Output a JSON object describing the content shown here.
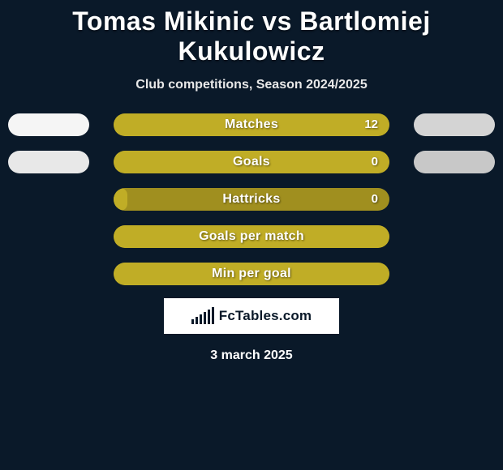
{
  "title": "Tomas Mikinic vs Bartlomiej Kukulowicz",
  "subtitle": "Club competitions, Season 2024/2025",
  "date_text": "3 march 2025",
  "logo_text": "FcTables.com",
  "colors": {
    "background": "#0a1929",
    "pill_left": "#f5f5f5",
    "pill_right": "#d4d4d4",
    "track": "#a08f1f",
    "fill": "#c0ad26"
  },
  "logo_bar_heights": [
    6,
    9,
    12,
    15,
    18,
    21
  ],
  "bars": [
    {
      "label": "Matches",
      "value_text": "12",
      "fill_pct": 100,
      "show_value": true,
      "show_left_pill": true,
      "show_right_pill": true,
      "left_pill_color": "#f5f5f5",
      "right_pill_color": "#d4d4d4"
    },
    {
      "label": "Goals",
      "value_text": "0",
      "fill_pct": 100,
      "show_value": true,
      "show_left_pill": true,
      "show_right_pill": true,
      "left_pill_color": "#e8e8e8",
      "right_pill_color": "#c8c8c8"
    },
    {
      "label": "Hattricks",
      "value_text": "0",
      "fill_pct": 5,
      "show_value": true,
      "show_left_pill": false,
      "show_right_pill": false
    },
    {
      "label": "Goals per match",
      "value_text": "",
      "fill_pct": 100,
      "show_value": false,
      "show_left_pill": false,
      "show_right_pill": false
    },
    {
      "label": "Min per goal",
      "value_text": "",
      "fill_pct": 100,
      "show_value": false,
      "show_left_pill": false,
      "show_right_pill": false
    }
  ]
}
